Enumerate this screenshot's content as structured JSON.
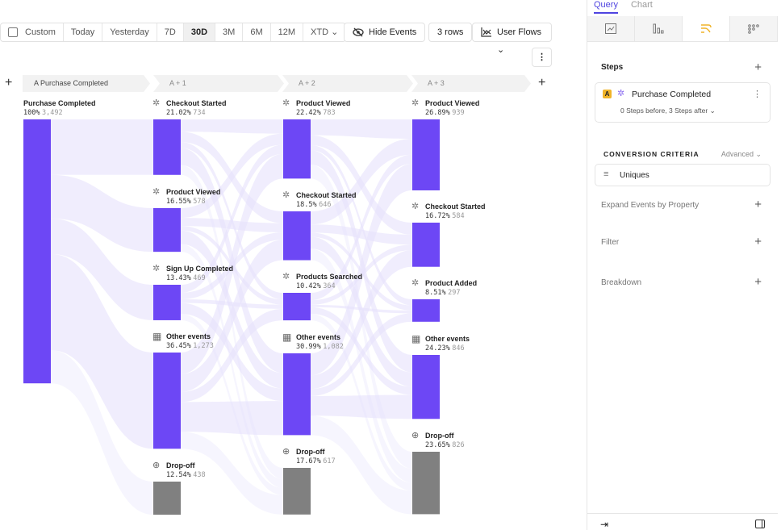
{
  "toolbar": {
    "ranges": [
      "Custom",
      "Today",
      "Yesterday",
      "7D",
      "30D",
      "3M",
      "6M",
      "12M",
      "XTD"
    ],
    "selected": "30D",
    "hide_events": "Hide Events",
    "rows": "3 rows",
    "view": "User Flows"
  },
  "columns": [
    {
      "header": "A Purchase Completed",
      "nodes": [
        {
          "name": "Purchase Completed",
          "pct": "100%",
          "count": "3,492",
          "value": 3492,
          "icon": "none"
        }
      ]
    },
    {
      "header": "A + 1",
      "nodes": [
        {
          "name": "Checkout Started",
          "pct": "21.02%",
          "count": "734",
          "value": 734,
          "icon": "click-icon"
        },
        {
          "name": "Product Viewed",
          "pct": "16.55%",
          "count": "578",
          "value": 578,
          "icon": "click-icon"
        },
        {
          "name": "Sign Up Completed",
          "pct": "13.43%",
          "count": "469",
          "value": 469,
          "icon": "click-icon"
        },
        {
          "name": "Other events",
          "pct": "36.45%",
          "count": "1,273",
          "value": 1273,
          "icon": "grid-icon"
        },
        {
          "name": "Drop-off",
          "pct": "12.54%",
          "count": "438",
          "value": 438,
          "icon": "dropoff-icon"
        }
      ]
    },
    {
      "header": "A + 2",
      "nodes": [
        {
          "name": "Product Viewed",
          "pct": "22.42%",
          "count": "783",
          "value": 783,
          "icon": "click-icon"
        },
        {
          "name": "Checkout Started",
          "pct": "18.5%",
          "count": "646",
          "value": 646,
          "icon": "click-icon"
        },
        {
          "name": "Products Searched",
          "pct": "10.42%",
          "count": "364",
          "value": 364,
          "icon": "click-icon"
        },
        {
          "name": "Other events",
          "pct": "30.99%",
          "count": "1,082",
          "value": 1082,
          "icon": "grid-icon"
        },
        {
          "name": "Drop-off",
          "pct": "17.67%",
          "count": "617",
          "value": 617,
          "icon": "dropoff-icon"
        }
      ]
    },
    {
      "header": "A + 3",
      "nodes": [
        {
          "name": "Product Viewed",
          "pct": "26.89%",
          "count": "939",
          "value": 939,
          "icon": "click-icon"
        },
        {
          "name": "Checkout Started",
          "pct": "16.72%",
          "count": "584",
          "value": 584,
          "icon": "click-icon"
        },
        {
          "name": "Product Added",
          "pct": "8.51%",
          "count": "297",
          "value": 297,
          "icon": "click-icon"
        },
        {
          "name": "Other events",
          "pct": "24.23%",
          "count": "846",
          "value": 846,
          "icon": "grid-icon"
        },
        {
          "name": "Drop-off",
          "pct": "23.65%",
          "count": "826",
          "value": 826,
          "icon": "dropoff-icon"
        }
      ]
    }
  ],
  "colors": {
    "node": "#6d47f5",
    "dropoff": "#808080",
    "flow": "#e6e1fb",
    "accent": "#4f44e0",
    "report_icon": "#f0b429"
  },
  "panel": {
    "tabs": [
      "Query",
      "Chart"
    ],
    "steps_title": "Steps",
    "step": {
      "badge": "A",
      "name": "Purchase Completed",
      "detail": "0 Steps before, 3 Steps after"
    },
    "criteria_title": "CONVERSION CRITERIA",
    "criteria_mode": "Advanced",
    "criteria_value": "Uniques",
    "expand": "Expand Events by Property",
    "filter": "Filter",
    "breakdown": "Breakdown"
  }
}
